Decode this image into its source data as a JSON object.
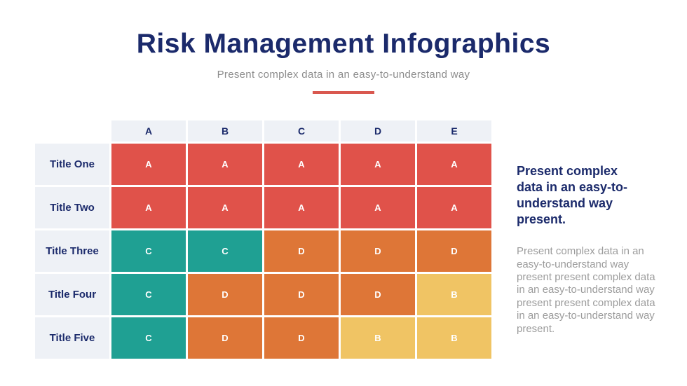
{
  "header": {
    "title": "Risk Management Infographics",
    "subtitle": "Present complex data in an easy-to-understand way"
  },
  "chart_data": {
    "type": "heatmap",
    "title": "Risk Management Infographics",
    "column_headers": [
      "A",
      "B",
      "C",
      "D",
      "E"
    ],
    "row_labels": [
      "Title One",
      "Title Two",
      "Title Three",
      "Title Four",
      "Title Five"
    ],
    "cells": [
      [
        {
          "value": "A",
          "color": "red"
        },
        {
          "value": "A",
          "color": "red"
        },
        {
          "value": "A",
          "color": "red"
        },
        {
          "value": "A",
          "color": "red"
        },
        {
          "value": "A",
          "color": "red"
        }
      ],
      [
        {
          "value": "A",
          "color": "red"
        },
        {
          "value": "A",
          "color": "red"
        },
        {
          "value": "A",
          "color": "red"
        },
        {
          "value": "A",
          "color": "red"
        },
        {
          "value": "A",
          "color": "red"
        }
      ],
      [
        {
          "value": "C",
          "color": "teal"
        },
        {
          "value": "C",
          "color": "teal"
        },
        {
          "value": "D",
          "color": "orange"
        },
        {
          "value": "D",
          "color": "orange"
        },
        {
          "value": "D",
          "color": "orange"
        }
      ],
      [
        {
          "value": "C",
          "color": "teal"
        },
        {
          "value": "D",
          "color": "orange"
        },
        {
          "value": "D",
          "color": "orange"
        },
        {
          "value": "D",
          "color": "orange"
        },
        {
          "value": "B",
          "color": "yellow"
        }
      ],
      [
        {
          "value": "C",
          "color": "teal"
        },
        {
          "value": "D",
          "color": "orange"
        },
        {
          "value": "D",
          "color": "orange"
        },
        {
          "value": "B",
          "color": "yellow"
        },
        {
          "value": "B",
          "color": "yellow"
        }
      ]
    ],
    "legend_position": "none",
    "grid": false
  },
  "sidebar": {
    "heading": "Present complex data in an easy-to-understand way present.",
    "body": "Present complex data in an easy-to-understand way present present complex data in an easy-to-understand way present present complex data in an easy-to-understand way present."
  },
  "colors": {
    "navy": "#1b2a6b",
    "red": "#e0524a",
    "teal": "#1fa093",
    "orange": "#de7637",
    "yellow": "#f0c464",
    "header_cell_bg": "#eef1f6",
    "cell_text": "#ffffff",
    "accent_line": "#d9584f",
    "subtitle_gray": "#8c8c8c",
    "body_gray": "#9c9c9c"
  }
}
